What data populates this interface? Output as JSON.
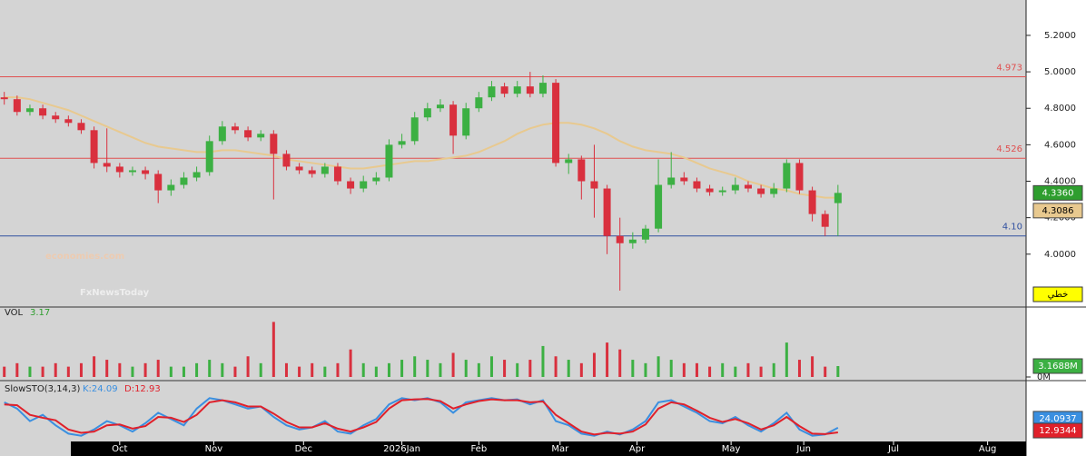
{
  "chart_data": {
    "type": "candlestick",
    "x": [
      1,
      4,
      7,
      10,
      13,
      16,
      19,
      22,
      25,
      28,
      31,
      34,
      37,
      40,
      43,
      46,
      49,
      52,
      55,
      58,
      61,
      64,
      67,
      70,
      73,
      76,
      79,
      82,
      85,
      88,
      91,
      94,
      97,
      100,
      103,
      106,
      109,
      112,
      115,
      118,
      121,
      124,
      127,
      130,
      133,
      136,
      139,
      142,
      145,
      148,
      151,
      154,
      157,
      160,
      163,
      166,
      169,
      172,
      175,
      178,
      181,
      184,
      187,
      190,
      193,
      196
    ],
    "xlim": [
      0,
      240
    ],
    "xticks": [
      {
        "value": 28,
        "label": "Oct"
      },
      {
        "value": 50,
        "label": "Nov"
      },
      {
        "value": 71,
        "label": "Dec"
      },
      {
        "value": 94,
        "label": "2026Jan"
      },
      {
        "value": 112,
        "label": "Feb"
      },
      {
        "value": 131,
        "label": "Mar"
      },
      {
        "value": 149,
        "label": "Apr"
      },
      {
        "value": 171,
        "label": "May"
      },
      {
        "value": 188,
        "label": "Jun"
      },
      {
        "value": 209,
        "label": "Jul"
      },
      {
        "value": 231,
        "label": "Aug"
      }
    ],
    "open": [
      4.86,
      4.85,
      4.78,
      4.8,
      4.76,
      4.74,
      4.72,
      4.68,
      4.5,
      4.48,
      4.45,
      4.46,
      4.44,
      4.35,
      4.38,
      4.42,
      4.45,
      4.62,
      4.7,
      4.68,
      4.64,
      4.66,
      4.55,
      4.48,
      4.46,
      4.44,
      4.48,
      4.4,
      4.36,
      4.4,
      4.42,
      4.6,
      4.62,
      4.75,
      4.8,
      4.82,
      4.65,
      4.8,
      4.86,
      4.92,
      4.88,
      4.92,
      4.88,
      4.94,
      4.5,
      4.52,
      4.4,
      4.36,
      4.1,
      4.06,
      4.08,
      4.14,
      4.38,
      4.42,
      4.4,
      4.36,
      4.34,
      4.35,
      4.38,
      4.36,
      4.33,
      4.36,
      4.5,
      4.35,
      4.22,
      4.28
    ],
    "high": [
      4.89,
      4.87,
      4.82,
      4.82,
      4.78,
      4.76,
      4.74,
      4.7,
      4.69,
      4.5,
      4.48,
      4.48,
      4.46,
      4.41,
      4.45,
      4.48,
      4.65,
      4.73,
      4.72,
      4.7,
      4.68,
      4.68,
      4.57,
      4.5,
      4.48,
      4.5,
      4.5,
      4.42,
      4.43,
      4.45,
      4.63,
      4.66,
      4.78,
      4.83,
      4.85,
      4.84,
      4.83,
      4.89,
      4.95,
      4.94,
      4.95,
      5.0,
      4.98,
      4.96,
      4.55,
      4.54,
      4.6,
      4.38,
      4.2,
      4.12,
      4.16,
      4.52,
      4.56,
      4.45,
      4.42,
      4.38,
      4.37,
      4.42,
      4.4,
      4.38,
      4.39,
      4.52,
      4.52,
      4.37,
      4.24,
      4.38
    ],
    "low": [
      4.82,
      4.76,
      4.76,
      4.74,
      4.72,
      4.7,
      4.66,
      4.47,
      4.45,
      4.42,
      4.43,
      4.41,
      4.28,
      4.32,
      4.36,
      4.4,
      4.43,
      4.6,
      4.66,
      4.62,
      4.62,
      4.3,
      4.46,
      4.44,
      4.42,
      4.42,
      4.38,
      4.33,
      4.34,
      4.38,
      4.4,
      4.58,
      4.6,
      4.73,
      4.78,
      4.55,
      4.63,
      4.78,
      4.84,
      4.86,
      4.86,
      4.86,
      4.86,
      4.48,
      4.44,
      4.3,
      4.2,
      4.0,
      3.8,
      4.03,
      4.06,
      4.12,
      4.36,
      4.38,
      4.34,
      4.32,
      4.32,
      4.33,
      4.34,
      4.31,
      4.31,
      4.34,
      4.33,
      4.18,
      4.1,
      4.1
    ],
    "close": [
      4.85,
      4.78,
      4.8,
      4.76,
      4.74,
      4.72,
      4.68,
      4.5,
      4.48,
      4.45,
      4.46,
      4.44,
      4.35,
      4.38,
      4.42,
      4.45,
      4.62,
      4.7,
      4.68,
      4.64,
      4.66,
      4.55,
      4.48,
      4.46,
      4.44,
      4.48,
      4.4,
      4.36,
      4.4,
      4.42,
      4.6,
      4.62,
      4.75,
      4.8,
      4.82,
      4.65,
      4.8,
      4.86,
      4.92,
      4.88,
      4.92,
      4.88,
      4.94,
      4.5,
      4.52,
      4.4,
      4.36,
      4.1,
      4.06,
      4.08,
      4.14,
      4.38,
      4.42,
      4.4,
      4.36,
      4.34,
      4.35,
      4.38,
      4.36,
      4.33,
      4.36,
      4.5,
      4.35,
      4.22,
      4.15,
      4.336
    ],
    "up_color": "#3cb043",
    "down_color": "#d9303e",
    "ylim": [
      3.71,
      5.394
    ],
    "yticks": [
      {
        "value": 5.2,
        "label": "5.2000"
      },
      {
        "value": 5.0,
        "label": "5.0000"
      },
      {
        "value": 4.8,
        "label": "4.8000"
      },
      {
        "value": 4.6,
        "label": "4.6000"
      },
      {
        "value": 4.4,
        "label": "4.4000"
      },
      {
        "value": 4.2,
        "label": "4.2000"
      },
      {
        "value": 4.0,
        "label": "4.0000"
      }
    ],
    "moving_average": {
      "color": "#e8c98f",
      "values": [
        4.86,
        4.86,
        4.85,
        4.83,
        4.81,
        4.79,
        4.76,
        4.73,
        4.7,
        4.67,
        4.64,
        4.61,
        4.59,
        4.58,
        4.57,
        4.56,
        4.56,
        4.57,
        4.57,
        4.56,
        4.55,
        4.54,
        4.52,
        4.51,
        4.5,
        4.49,
        4.48,
        4.47,
        4.47,
        4.48,
        4.49,
        4.5,
        4.51,
        4.51,
        4.52,
        4.53,
        4.54,
        4.56,
        4.59,
        4.62,
        4.66,
        4.69,
        4.71,
        4.72,
        4.72,
        4.71,
        4.69,
        4.66,
        4.62,
        4.59,
        4.57,
        4.56,
        4.55,
        4.53,
        4.5,
        4.47,
        4.45,
        4.43,
        4.4,
        4.38,
        4.36,
        4.35,
        4.33,
        4.32,
        4.31,
        4.31
      ]
    },
    "hlines": [
      {
        "value": 4.973,
        "label": "4.973",
        "color": "#e05050"
      },
      {
        "value": 4.526,
        "label": "4.526",
        "color": "#e05050"
      },
      {
        "value": 4.1,
        "label": "4.10",
        "color": "#3050a0"
      }
    ],
    "last_price": {
      "value": 4.336,
      "label": "4.3360",
      "color": "#2e9e2e"
    },
    "ma_price": {
      "value": 4.3086,
      "label": "4.3086",
      "color": "#e8c98f"
    },
    "style_label": "خطي",
    "watermark": [
      "economies.com",
      "FxNewsToday"
    ],
    "volume": {
      "title": "VOL",
      "last": "3.17",
      "values": [
        3,
        4,
        3,
        3,
        4,
        3,
        4,
        6,
        5,
        4,
        3,
        4,
        5,
        3,
        3,
        4,
        5,
        4,
        3,
        6,
        4,
        16,
        4,
        3,
        4,
        3,
        4,
        8,
        4,
        3,
        4,
        5,
        6,
        5,
        4,
        7,
        5,
        4,
        6,
        5,
        4,
        5,
        9,
        6,
        5,
        4,
        7,
        10,
        8,
        5,
        4,
        6,
        5,
        4,
        4,
        3,
        4,
        3,
        4,
        3,
        4,
        10,
        5,
        6,
        3,
        3.1688
      ],
      "ylim": [
        0,
        19.8
      ],
      "yticks": [
        {
          "value": 0,
          "label": "0M"
        }
      ],
      "last_label": {
        "value": 3.1688,
        "label": "3.1688M"
      }
    },
    "stochastic": {
      "title": "SlowSTO(3,14,3)",
      "k_text": "K:24.09",
      "d_text": "D:12.93",
      "slim": [
        0,
        100
      ],
      "series": [
        {
          "name": "K",
          "color": "#3a8fe0",
          "values": [
            85,
            70,
            40,
            55,
            30,
            10,
            5,
            20,
            40,
            30,
            15,
            35,
            60,
            45,
            30,
            70,
            95,
            90,
            80,
            70,
            75,
            50,
            30,
            20,
            25,
            40,
            15,
            10,
            30,
            45,
            80,
            95,
            90,
            95,
            85,
            60,
            85,
            90,
            95,
            90,
            92,
            80,
            90,
            40,
            30,
            10,
            5,
            15,
            8,
            20,
            40,
            85,
            90,
            75,
            60,
            40,
            35,
            50,
            30,
            15,
            35,
            60,
            20,
            5,
            8,
            24.09
          ],
          "last_label": {
            "value": 24.0937,
            "label": "24.0937"
          }
        },
        {
          "name": "D",
          "color": "#e0202a",
          "values": [
            80,
            78,
            55,
            48,
            42,
            20,
            12,
            15,
            30,
            32,
            22,
            28,
            50,
            48,
            38,
            55,
            85,
            90,
            85,
            75,
            75,
            58,
            38,
            25,
            25,
            35,
            22,
            15,
            25,
            38,
            70,
            90,
            92,
            93,
            88,
            70,
            80,
            88,
            92,
            90,
            90,
            85,
            87,
            55,
            35,
            15,
            8,
            12,
            10,
            15,
            32,
            70,
            85,
            80,
            65,
            48,
            38,
            45,
            35,
            20,
            30,
            50,
            28,
            10,
            9,
            12.93
          ],
          "last_label": {
            "value": 12.9344,
            "label": "12.9344"
          }
        }
      ]
    }
  }
}
